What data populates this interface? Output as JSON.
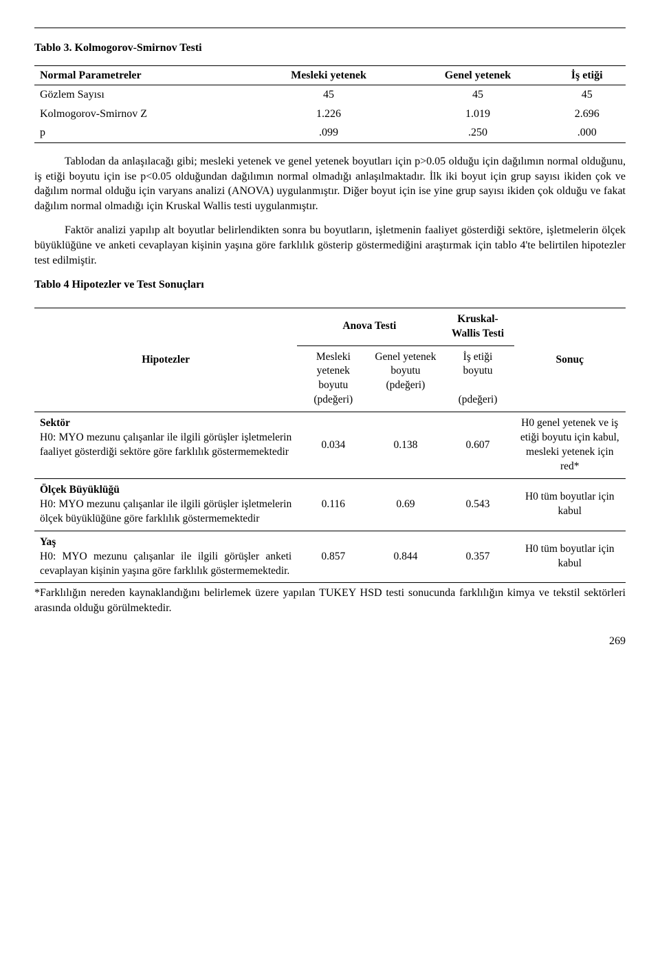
{
  "table1": {
    "title": "Tablo 3. Kolmogorov-Smirnov Testi",
    "columns": [
      "Normal Parametreler",
      "Mesleki yetenek",
      "Genel yetenek",
      "İş etiği"
    ],
    "rows": [
      [
        "Gözlem Sayısı",
        "45",
        "45",
        "45"
      ],
      [
        "Kolmogorov-Smirnov Z",
        "1.226",
        "1.019",
        "2.696"
      ],
      [
        "p",
        ".099",
        ".250",
        ".000"
      ]
    ]
  },
  "para1": "Tablodan da anlaşılacağı gibi; mesleki yetenek ve genel yetenek boyutları için p>0.05 olduğu için dağılımın normal olduğunu, iş etiği boyutu için ise p<0.05 olduğundan dağılımın normal olmadığı anlaşılmaktadır. İlk iki boyut için grup sayısı ikiden çok ve dağılım normal olduğu için varyans analizi (ANOVA) uygulanmıştır. Diğer boyut için ise yine grup sayısı ikiden çok olduğu ve fakat dağılım normal olmadığı için Kruskal Wallis testi uygulanmıştır.",
  "para2": "Faktör analizi yapılıp alt boyutlar belirlendikten sonra bu boyutların, işletmenin faaliyet gösterdiği sektöre, işletmelerin ölçek büyüklüğüne ve anketi cevaplayan kişinin yaşına göre farklılık gösterip göstermediğini araştırmak için tablo 4'te belirtilen hipotezler test edilmiştir.",
  "table2": {
    "title": "Tablo 4 Hipotezler ve Test Sonuçları",
    "header": {
      "anova": "Anova Testi",
      "kw": "Kruskal-Wallis Testi",
      "hypo": "Hipotezler",
      "c1": "Mesleki yetenek boyutu (pdeğeri)",
      "c2": "Genel yetenek boyutu (pdeğeri)",
      "c3": "İş etiği boyutu",
      "c3b": "(pdeğeri)",
      "res": "Sonuç"
    },
    "rows": [
      {
        "head": "Sektör",
        "body": "H0: MYO mezunu çalışanlar ile ilgili görüşler işletmelerin faaliyet gösterdiği sektöre göre farklılık göstermemektedir",
        "v1": "0.034",
        "v2": "0.138",
        "v3": "0.607",
        "res": "H0 genel yetenek ve iş etiği boyutu için kabul, mesleki yetenek için red*"
      },
      {
        "head": "Ölçek Büyüklüğü",
        "body": "H0: MYO mezunu çalışanlar ile ilgili görüşler işletmelerin ölçek büyüklüğüne göre farklılık göstermemektedir",
        "v1": "0.116",
        "v2": "0.69",
        "v3": "0.543",
        "res": "H0 tüm boyutlar için kabul"
      },
      {
        "head": "Yaş",
        "body": "H0: MYO mezunu çalışanlar ile ilgili görüşler anketi cevaplayan kişinin yaşına göre farklılık göstermemektedir.",
        "v1": "0.857",
        "v2": "0.844",
        "v3": "0.357",
        "res": "H0 tüm boyutlar için kabul"
      }
    ],
    "footnote": "*Farklılığın nereden kaynaklandığını belirlemek üzere yapılan TUKEY HSD testi sonucunda farklılığın kimya ve tekstil sektörleri arasında olduğu görülmektedir."
  },
  "pagenum": "269"
}
